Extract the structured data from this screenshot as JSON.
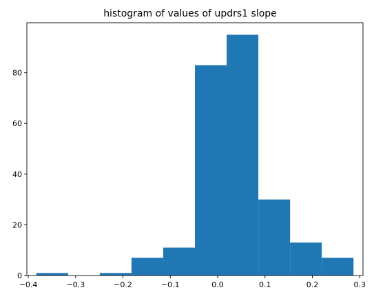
{
  "chart_data": {
    "type": "bar",
    "title": "histogram of values of updrs1 slope",
    "xlabel": "",
    "ylabel": "",
    "bin_edges": [
      -0.383,
      -0.316,
      -0.249,
      -0.182,
      -0.115,
      -0.048,
      0.019,
      0.086,
      0.153,
      0.22,
      0.287
    ],
    "values": [
      1,
      0,
      1,
      7,
      11,
      83,
      95,
      30,
      13,
      7
    ],
    "xlim": [
      -0.403,
      0.307
    ],
    "ylim": [
      0,
      99.75
    ],
    "x_ticks": [
      -0.4,
      -0.3,
      -0.2,
      -0.1,
      0.0,
      0.1,
      0.2,
      0.3
    ],
    "x_tick_labels": [
      "−0.4",
      "−0.3",
      "−0.2",
      "−0.1",
      "0.0",
      "0.1",
      "0.2",
      "0.3"
    ],
    "y_ticks": [
      0,
      20,
      40,
      60,
      80
    ],
    "y_tick_labels": [
      "0",
      "20",
      "40",
      "60",
      "80"
    ],
    "grid": false,
    "bar_color": "#1f77b4"
  }
}
